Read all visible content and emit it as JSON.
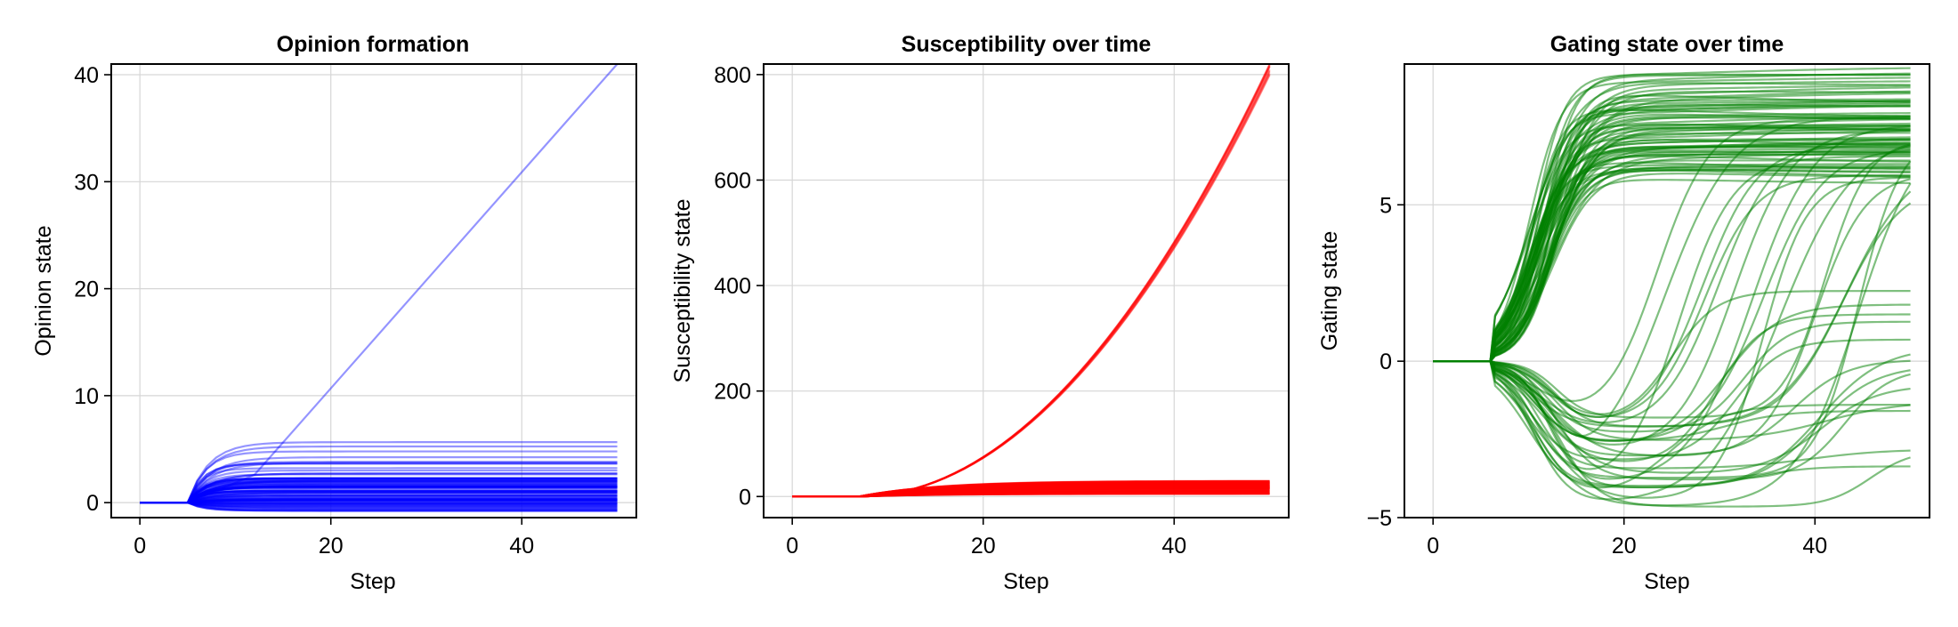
{
  "chart_data": [
    {
      "type": "line",
      "title": "Opinion formation",
      "xlabel": "Step",
      "ylabel": "Opinion state",
      "xlim": [
        -3,
        52
      ],
      "ylim": [
        -1.4,
        41
      ],
      "xticks": [
        0,
        20,
        40
      ],
      "yticks": [
        0,
        10,
        20,
        30,
        40
      ],
      "xtick_labels": [
        "0",
        "20",
        "40"
      ],
      "ytick_labels": [
        "0",
        "10",
        "20",
        "30",
        "40"
      ],
      "grid": true,
      "color": "#0000ff",
      "line_alpha": 0.42,
      "n_series": 100,
      "series_summary": {
        "x_range": [
          0,
          50
        ],
        "flat_until_step": 5,
        "final_values_range": [
          -0.8,
          5.7
        ],
        "outlier_series": {
          "x": [
            0,
            5,
            12,
            50
          ],
          "y": [
            0,
            0,
            2.6,
            41
          ]
        }
      }
    },
    {
      "type": "line",
      "title": "Susceptibility over time",
      "xlabel": "Step",
      "ylabel": "Susceptibility state",
      "xlim": [
        -3,
        52
      ],
      "ylim": [
        -40,
        820
      ],
      "xticks": [
        0,
        20,
        40
      ],
      "yticks": [
        0,
        200,
        400,
        600,
        800
      ],
      "xtick_labels": [
        "0",
        "20",
        "40"
      ],
      "ytick_labels": [
        "0",
        "200",
        "400",
        "600",
        "800"
      ],
      "grid": true,
      "color": "#ff0000",
      "line_alpha": 0.42,
      "n_series": 100,
      "series_summary": {
        "x_range": [
          0,
          50
        ],
        "upper_bundle_final_value": 810,
        "lower_bundle_final_range": [
          5,
          30
        ]
      }
    },
    {
      "type": "line",
      "title": "Gating state over time",
      "xlabel": "Step",
      "ylabel": "Gating state",
      "xlim": [
        -3,
        52
      ],
      "ylim": [
        -5,
        9.5
      ],
      "xticks": [
        0,
        20,
        40
      ],
      "yticks": [
        -5,
        0,
        5
      ],
      "xtick_labels": [
        "0",
        "20",
        "40"
      ],
      "ytick_labels": [
        "−5",
        "0",
        "5"
      ],
      "grid": true,
      "color": "#008000",
      "line_alpha": 0.5,
      "n_series": 100,
      "series_summary": {
        "x_range": [
          0,
          50
        ],
        "flat_until_step": 6,
        "final_values_range": [
          -3.8,
          9.2
        ]
      }
    }
  ]
}
